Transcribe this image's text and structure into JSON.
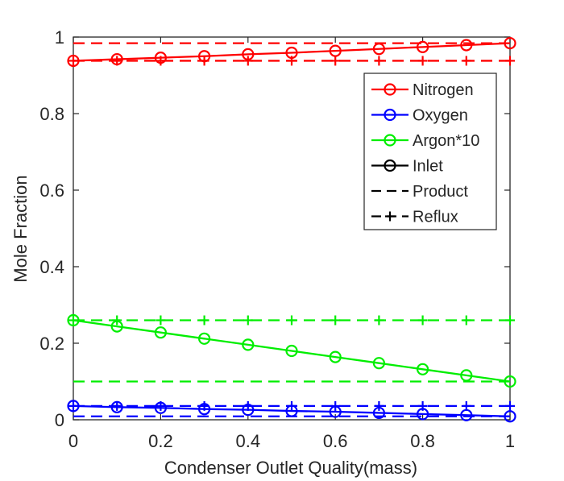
{
  "chart_data": {
    "type": "line",
    "xlabel": "Condenser Outlet Quality(mass)",
    "ylabel": "Mole Fraction",
    "xlim": [
      0,
      1
    ],
    "ylim": [
      0,
      1
    ],
    "x_ticks": [
      0,
      0.2,
      0.4,
      0.6,
      0.8,
      1
    ],
    "x_tick_labels": [
      "0",
      "0.2",
      "0.4",
      "0.6",
      "0.8",
      "1"
    ],
    "y_ticks": [
      0,
      0.2,
      0.4,
      0.6,
      0.8,
      1
    ],
    "y_tick_labels": [
      "0",
      "0.2",
      "0.4",
      "0.6",
      "0.8",
      "1"
    ],
    "grid": false,
    "legend_position": "top-right",
    "x": [
      0,
      0.1,
      0.2,
      0.3,
      0.4,
      0.5,
      0.6,
      0.7,
      0.8,
      0.9,
      1.0
    ],
    "series": [
      {
        "name": "Nitrogen",
        "stream": "Inlet",
        "color": "#ff0000",
        "style": "solid",
        "marker": "circle",
        "values": [
          0.938,
          0.942,
          0.946,
          0.95,
          0.955,
          0.959,
          0.964,
          0.969,
          0.974,
          0.979,
          0.984
        ]
      },
      {
        "name": "Nitrogen",
        "stream": "Product",
        "color": "#ff0000",
        "style": "dashed",
        "marker": "none",
        "values": [
          0.984,
          0.984,
          0.984,
          0.984,
          0.984,
          0.984,
          0.984,
          0.984,
          0.984,
          0.984,
          0.984
        ]
      },
      {
        "name": "Nitrogen",
        "stream": "Reflux",
        "color": "#ff0000",
        "style": "dashed",
        "marker": "plus",
        "values": [
          0.938,
          0.938,
          0.938,
          0.938,
          0.938,
          0.938,
          0.938,
          0.938,
          0.938,
          0.938,
          0.938
        ]
      },
      {
        "name": "Oxygen",
        "stream": "Inlet",
        "color": "#0000ff",
        "style": "solid",
        "marker": "circle",
        "values": [
          0.036,
          0.033,
          0.031,
          0.028,
          0.026,
          0.023,
          0.021,
          0.018,
          0.015,
          0.012,
          0.009
        ]
      },
      {
        "name": "Oxygen",
        "stream": "Product",
        "color": "#0000ff",
        "style": "dashed",
        "marker": "none",
        "values": [
          0.009,
          0.009,
          0.009,
          0.009,
          0.009,
          0.009,
          0.009,
          0.009,
          0.009,
          0.009,
          0.009
        ]
      },
      {
        "name": "Oxygen",
        "stream": "Reflux",
        "color": "#0000ff",
        "style": "dashed",
        "marker": "plus",
        "values": [
          0.036,
          0.036,
          0.036,
          0.036,
          0.036,
          0.036,
          0.036,
          0.036,
          0.036,
          0.036,
          0.036
        ]
      },
      {
        "name": "Argon*10",
        "stream": "Inlet",
        "color": "#00ee00",
        "style": "solid",
        "marker": "circle",
        "values": [
          0.26,
          0.244,
          0.228,
          0.212,
          0.196,
          0.18,
          0.164,
          0.148,
          0.132,
          0.116,
          0.1
        ]
      },
      {
        "name": "Argon*10",
        "stream": "Product",
        "color": "#00ee00",
        "style": "dashed",
        "marker": "none",
        "values": [
          0.1,
          0.1,
          0.1,
          0.1,
          0.1,
          0.1,
          0.1,
          0.1,
          0.1,
          0.1,
          0.1
        ]
      },
      {
        "name": "Argon*10",
        "stream": "Reflux",
        "color": "#00ee00",
        "style": "dashed",
        "marker": "plus",
        "values": [
          0.26,
          0.26,
          0.26,
          0.26,
          0.26,
          0.26,
          0.26,
          0.26,
          0.26,
          0.26,
          0.26
        ]
      }
    ],
    "legend": [
      {
        "label": "Nitrogen",
        "color": "#ff0000",
        "style": "solid",
        "marker": "circle"
      },
      {
        "label": "Oxygen",
        "color": "#0000ff",
        "style": "solid",
        "marker": "circle"
      },
      {
        "label": "Argon*10",
        "color": "#00ee00",
        "style": "solid",
        "marker": "circle"
      },
      {
        "label": "Inlet",
        "color": "#000000",
        "style": "solid",
        "marker": "circle"
      },
      {
        "label": "Product",
        "color": "#000000",
        "style": "dashed",
        "marker": "none"
      },
      {
        "label": "Reflux",
        "color": "#000000",
        "style": "dashed",
        "marker": "plus"
      }
    ]
  }
}
